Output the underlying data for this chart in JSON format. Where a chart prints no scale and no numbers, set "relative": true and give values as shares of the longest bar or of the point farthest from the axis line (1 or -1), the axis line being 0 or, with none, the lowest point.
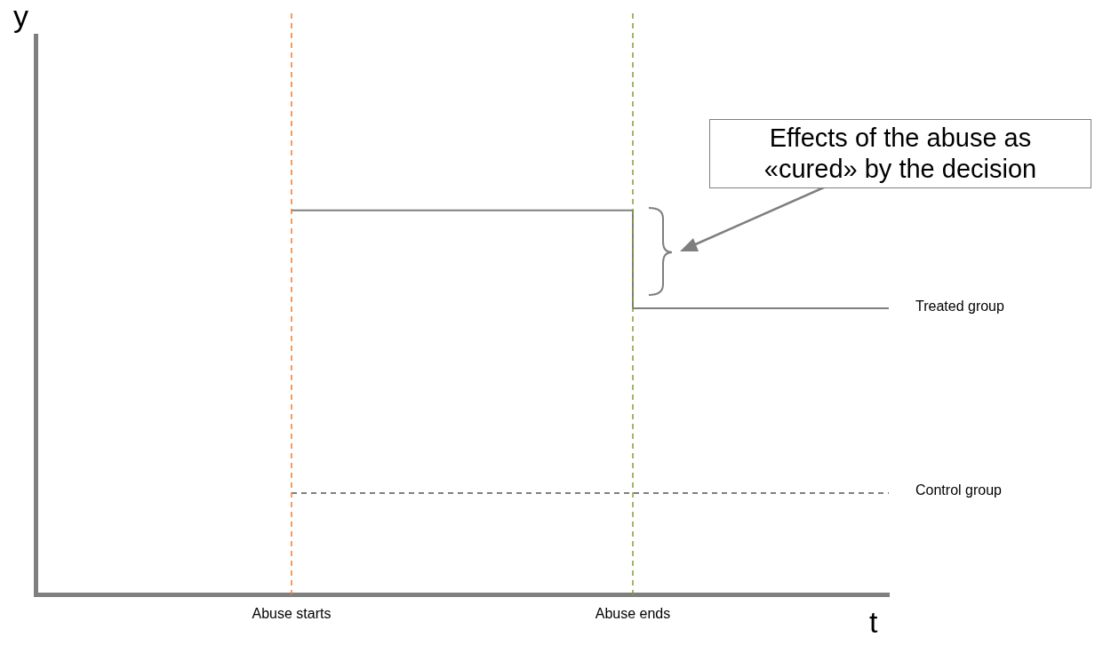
{
  "chart_data": {
    "type": "line",
    "relative": true,
    "xlabel": "t",
    "categories": [
      null,
      null,
      null,
      "Abuse starts",
      null,
      null,
      null,
      "Abuse ends",
      null,
      null,
      null
    ],
    "series": [
      {
        "name": "Treated group",
        "type": "step",
        "color": "#7f7f7f",
        "values": [
          null,
          null,
          null,
          1,
          1,
          1,
          1,
          1,
          0.745,
          0.745,
          0.745
        ]
      },
      {
        "name": "Control group",
        "color": "#7f7f7f",
        "line_style": "dashed",
        "values": [
          null,
          null,
          null,
          0.265,
          0.265,
          0.265,
          0.265,
          0.265,
          0.265,
          0.265,
          0.265
        ]
      }
    ],
    "ref_lines": [
      {
        "axis": "x",
        "value": "Abuse starts",
        "color": "#ed7d31",
        "line_style": "dashed"
      },
      {
        "axis": "x",
        "value": "Abuse ends",
        "color": "#7f9f3f",
        "line_style": "dashed"
      }
    ],
    "annotations": [
      "y",
      "Effects of the abuse as «cured» by the decision"
    ],
    "grid": false,
    "legend": false,
    "marker": "none"
  }
}
